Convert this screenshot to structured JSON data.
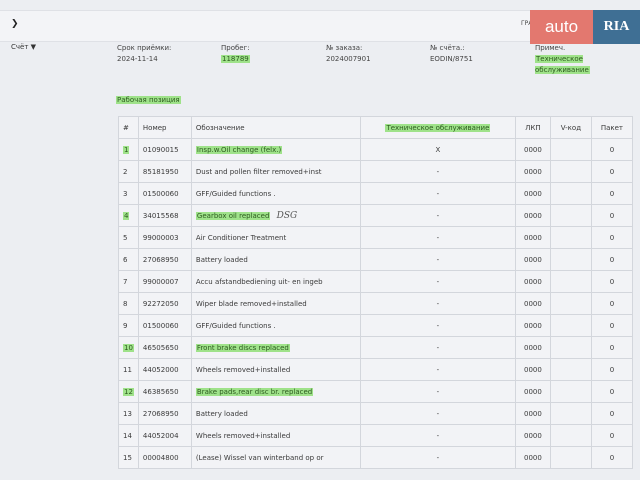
{
  "header": {
    "toggle_icon": "chevron-down-icon",
    "top_link": "ГРАФ...",
    "logo": {
      "part1": "auto",
      "part2": "RIA"
    }
  },
  "invoice": {
    "label": "Счёт",
    "icon": "chevron-down-icon"
  },
  "fields": [
    {
      "label": "Срок приёмки:",
      "value": "2024-11-14"
    },
    {
      "label": "Пробег:",
      "value": "118789"
    },
    {
      "label": "№ заказа:",
      "value": "2024007901"
    },
    {
      "label": "№ счёта.:",
      "value": "EODIN/8751"
    },
    {
      "label": "Примеч.",
      "value": "Техническое обслуживание"
    }
  ],
  "section_title": "Рабочая позиция",
  "table": {
    "headers": [
      "#",
      "Номер",
      "Обозначение",
      "Техническое обслуживание",
      "ЛКП",
      "V-код",
      "Пакет"
    ],
    "rows": [
      {
        "n": "1",
        "num": "01090015",
        "desc": "Insp.w.Oil change (felx.)",
        "to": "X",
        "lkp": "0000",
        "v": "",
        "pkg": "0",
        "hl": true
      },
      {
        "n": "2",
        "num": "85181950",
        "desc": "Dust and pollen filter removed+inst",
        "to": "-",
        "lkp": "0000",
        "v": "",
        "pkg": "0"
      },
      {
        "n": "3",
        "num": "01500060",
        "desc": "GFF/Guided functions .",
        "to": "-",
        "lkp": "0000",
        "v": "",
        "pkg": "0"
      },
      {
        "n": "4",
        "num": "34015568",
        "desc": "Gearbox oil replaced",
        "note": "DSG",
        "to": "-",
        "lkp": "0000",
        "v": "",
        "pkg": "0",
        "hl": true
      },
      {
        "n": "5",
        "num": "99000003",
        "desc": "Air Conditioner Treatment",
        "to": "-",
        "lkp": "0000",
        "v": "",
        "pkg": "0"
      },
      {
        "n": "6",
        "num": "27068950",
        "desc": "Battery loaded",
        "to": "-",
        "lkp": "0000",
        "v": "",
        "pkg": "0"
      },
      {
        "n": "7",
        "num": "99000007",
        "desc": "Accu afstandbediening uit- en ingeb",
        "to": "-",
        "lkp": "0000",
        "v": "",
        "pkg": "0"
      },
      {
        "n": "8",
        "num": "92272050",
        "desc": "Wiper blade removed+installed",
        "to": "-",
        "lkp": "0000",
        "v": "",
        "pkg": "0"
      },
      {
        "n": "9",
        "num": "01500060",
        "desc": "GFF/Guided functions .",
        "to": "-",
        "lkp": "0000",
        "v": "",
        "pkg": "0"
      },
      {
        "n": "10",
        "num": "46505650",
        "desc": "Front brake discs replaced",
        "to": "-",
        "lkp": "0000",
        "v": "",
        "pkg": "0",
        "hl": true
      },
      {
        "n": "11",
        "num": "44052000",
        "desc": "Wheels removed+installed",
        "to": "-",
        "lkp": "0000",
        "v": "",
        "pkg": "0"
      },
      {
        "n": "12",
        "num": "46385650",
        "desc": "Brake pads,rear disc br. replaced",
        "to": "-",
        "lkp": "0000",
        "v": "",
        "pkg": "0",
        "hl": true
      },
      {
        "n": "13",
        "num": "27068950",
        "desc": "Battery loaded",
        "to": "-",
        "lkp": "0000",
        "v": "",
        "pkg": "0"
      },
      {
        "n": "14",
        "num": "44052004",
        "desc": "Wheels removed+installed",
        "to": "-",
        "lkp": "0000",
        "v": "",
        "pkg": "0"
      },
      {
        "n": "15",
        "num": "00004800",
        "desc": "(Lease) Wissel van winterband op or",
        "to": "-",
        "lkp": "0000",
        "v": "",
        "pkg": "0"
      }
    ]
  }
}
